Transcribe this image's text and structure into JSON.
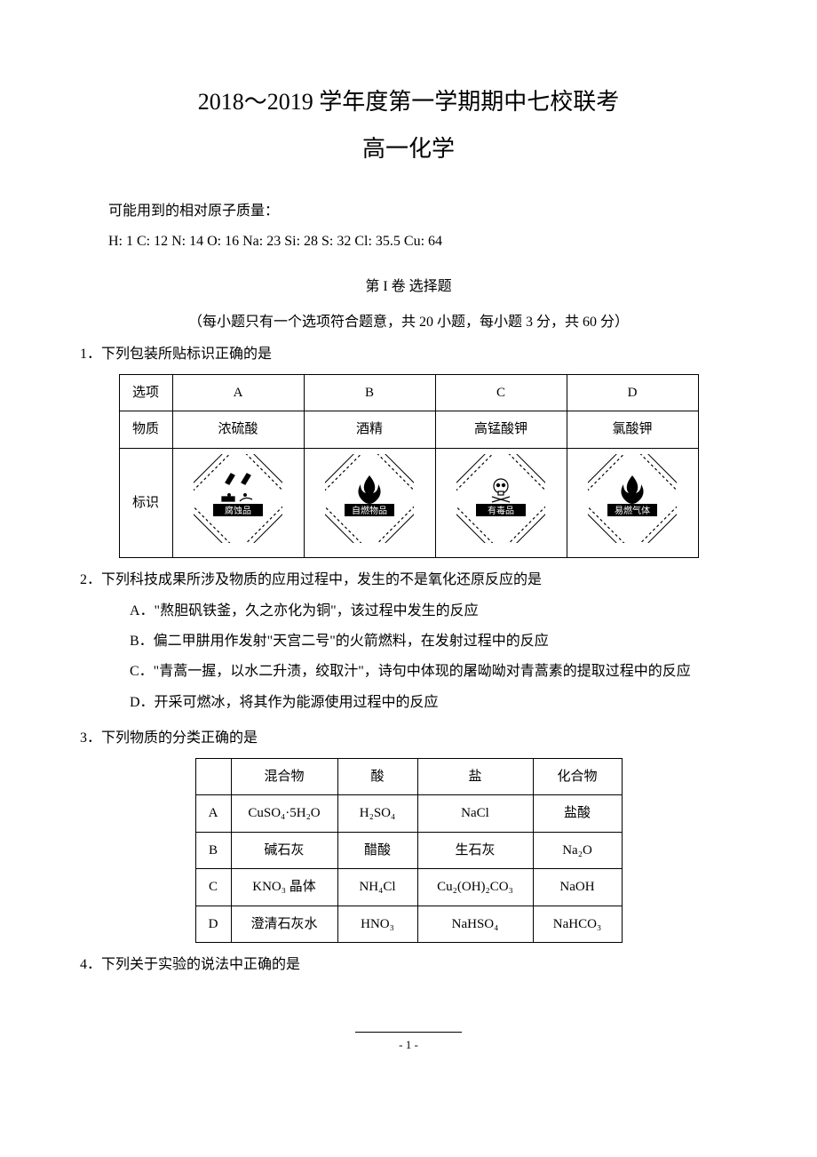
{
  "title_main": "2018～2019 学年度第一学期期中七校联考",
  "title_sub": "高一化学",
  "masses_label": "可能用到的相对原子质量：",
  "masses_list": "H: 1  C: 12  N: 14  O: 16  Na: 23  Si: 28  S: 32  Cl: 35.5  Cu: 64",
  "part1_header": "第 I 卷 选择题",
  "part1_note": "（每小题只有一个选项符合题意，共 20 小题，每小题 3 分，共 60 分）",
  "q1": {
    "stem": "1．下列包装所贴标识正确的是",
    "row_labels": [
      "选项",
      "物质",
      "标识"
    ],
    "cols": [
      "A",
      "B",
      "C",
      "D"
    ],
    "substances": [
      "浓硫酸",
      "酒精",
      "高锰酸钾",
      "氯酸钾"
    ],
    "hazard_labels": [
      "腐蚀品",
      "自燃物品",
      "有毒品",
      "易燃气体"
    ]
  },
  "q2": {
    "stem": "2．下列科技成果所涉及物质的应用过程中，发生的不是氧化还原反应的是",
    "A": "A．\"熬胆矾铁釜，久之亦化为铜\"，该过程中发生的反应",
    "B": "B．偏二甲肼用作发射\"天宫二号\"的火箭燃料，在发射过程中的反应",
    "C": "C．\"青蒿一握，以水二升渍，绞取汁\"，诗句中体现的屠呦呦对青蒿素的提取过程中的反应",
    "D": "D．开采可燃冰，将其作为能源使用过程中的反应"
  },
  "q3": {
    "stem": "3．下列物质的分类正确的是",
    "headers": [
      "",
      "混合物",
      "酸",
      "盐",
      "化合物"
    ],
    "rows": [
      [
        "A",
        "CuSO₄·5H₂O",
        "H₂SO₄",
        "NaCl",
        "盐酸"
      ],
      [
        "B",
        "碱石灰",
        "醋酸",
        "生石灰",
        "Na₂O"
      ],
      [
        "C",
        "KNO₃ 晶体",
        "NH₄Cl",
        "Cu₂(OH)₂CO₃",
        "NaOH"
      ],
      [
        "D",
        "澄清石灰水",
        "HNO₃",
        "NaHSO₄",
        "NaHCO₃"
      ]
    ]
  },
  "q4": {
    "stem": "4．下列关于实验的说法中正确的是"
  },
  "footer_page": "- 1 -",
  "hazard_svg": {
    "stroke": "#000000",
    "fill": "#ffffff",
    "size": 100,
    "label_fontsize": 10
  }
}
